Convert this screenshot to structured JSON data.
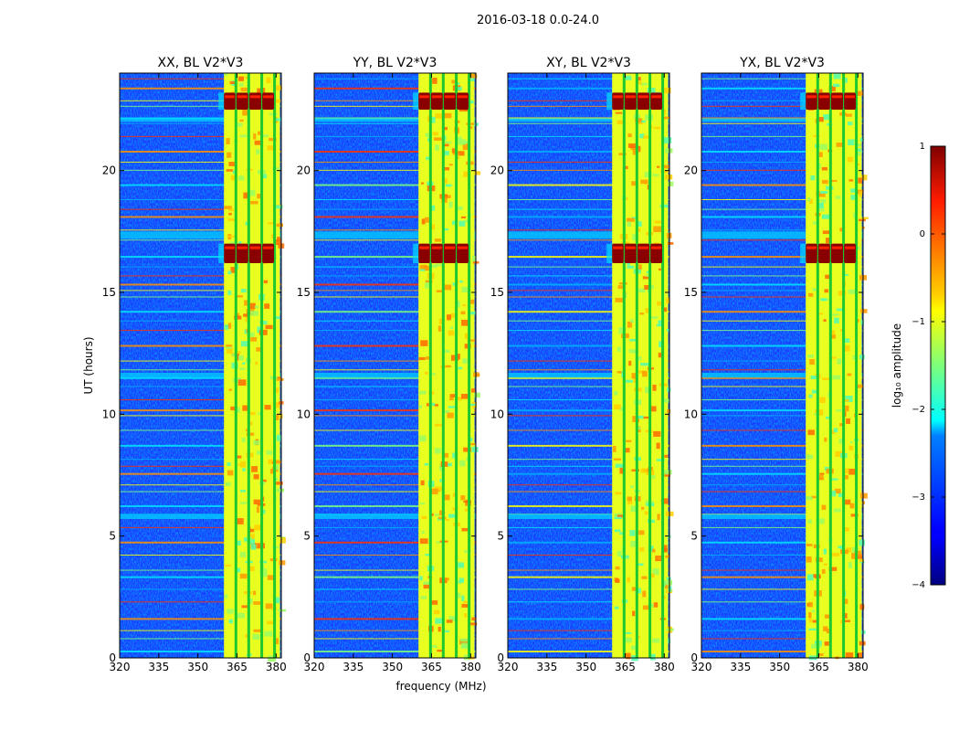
{
  "figure": {
    "suptitle": "2016-03-18 0.0-24.0",
    "xlabel": "frequency (MHz)",
    "ylabel": "UT (hours)"
  },
  "chart_data": {
    "type": "heatmap",
    "title": "2016-03-18 0.0-24.0",
    "xlabel": "frequency (MHz)",
    "ylabel": "UT (hours)",
    "xlim": [
      320,
      382
    ],
    "ylim": [
      0,
      24
    ],
    "xticks": [
      320,
      335,
      350,
      365,
      380
    ],
    "yticks": [
      0,
      5,
      10,
      15,
      20
    ],
    "panels": [
      {
        "name": "XX",
        "title": "XX, BL V2*V3"
      },
      {
        "name": "YY",
        "title": "YY, BL V2*V3"
      },
      {
        "name": "XY",
        "title": "XY, BL V2*V3"
      },
      {
        "name": "YX",
        "title": "YX, BL V2*V3"
      }
    ],
    "colorbar": {
      "label": "log₁₀ amplitude",
      "range": [
        -4,
        1
      ],
      "ticks": [
        1,
        0,
        -1,
        -2,
        -3,
        -4
      ],
      "tick_labels": [
        "1",
        "0",
        "−1",
        "−2",
        "−3",
        "−4"
      ],
      "colormap": "jet"
    },
    "band": {
      "start_mhz": 360,
      "end_mhz": 381.5,
      "channel_edges_mhz": [
        364.6,
        369.5,
        374.5,
        379.4
      ]
    },
    "strong_rfi": [
      {
        "t_start": 22.5,
        "t_end": 23.2,
        "mhz_start": 360,
        "mhz_end": 381
      },
      {
        "t_start": 16.2,
        "t_end": 17.0,
        "mhz_start": 360,
        "mhz_end": 381
      }
    ]
  },
  "colors": {
    "background": "#ffffff",
    "low": "#00008f",
    "high": "#800000"
  }
}
